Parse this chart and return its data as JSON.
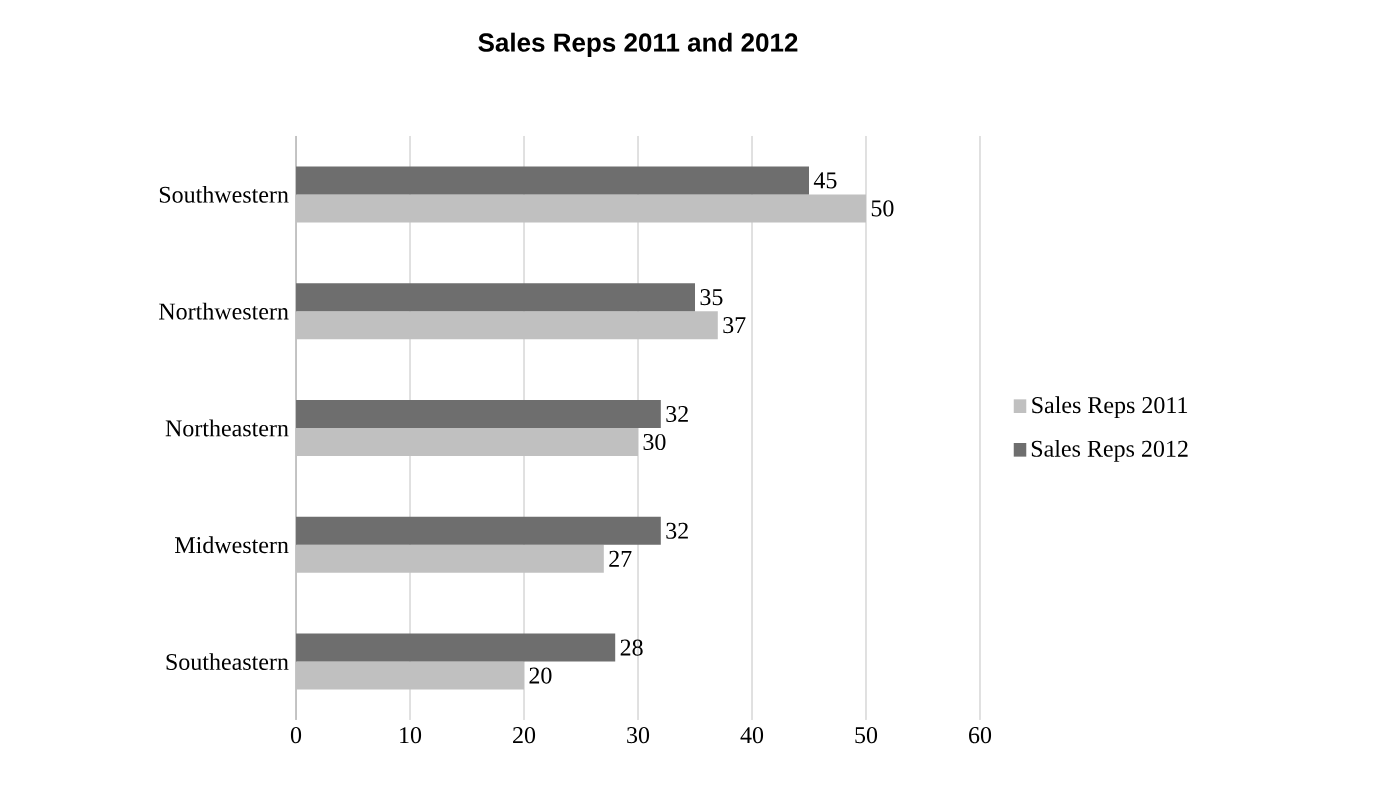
{
  "chart_data": {
    "type": "bar",
    "orientation": "horizontal",
    "title": "Sales Reps 2011 and 2012",
    "categories": [
      "Southwestern",
      "Northwestern",
      "Northeastern",
      "Midwestern",
      "Southeastern"
    ],
    "series": [
      {
        "name": "Sales Reps 2011",
        "color": "#c0c0c0",
        "values": [
          50,
          37,
          30,
          27,
          20
        ]
      },
      {
        "name": "Sales Reps 2012",
        "color": "#6e6e6e",
        "values": [
          45,
          35,
          32,
          32,
          28
        ]
      }
    ],
    "xlim": [
      0,
      60
    ],
    "xticks": [
      0,
      10,
      20,
      30,
      40,
      50,
      60
    ],
    "grid": "x",
    "legend": "right",
    "data_labels": true
  }
}
